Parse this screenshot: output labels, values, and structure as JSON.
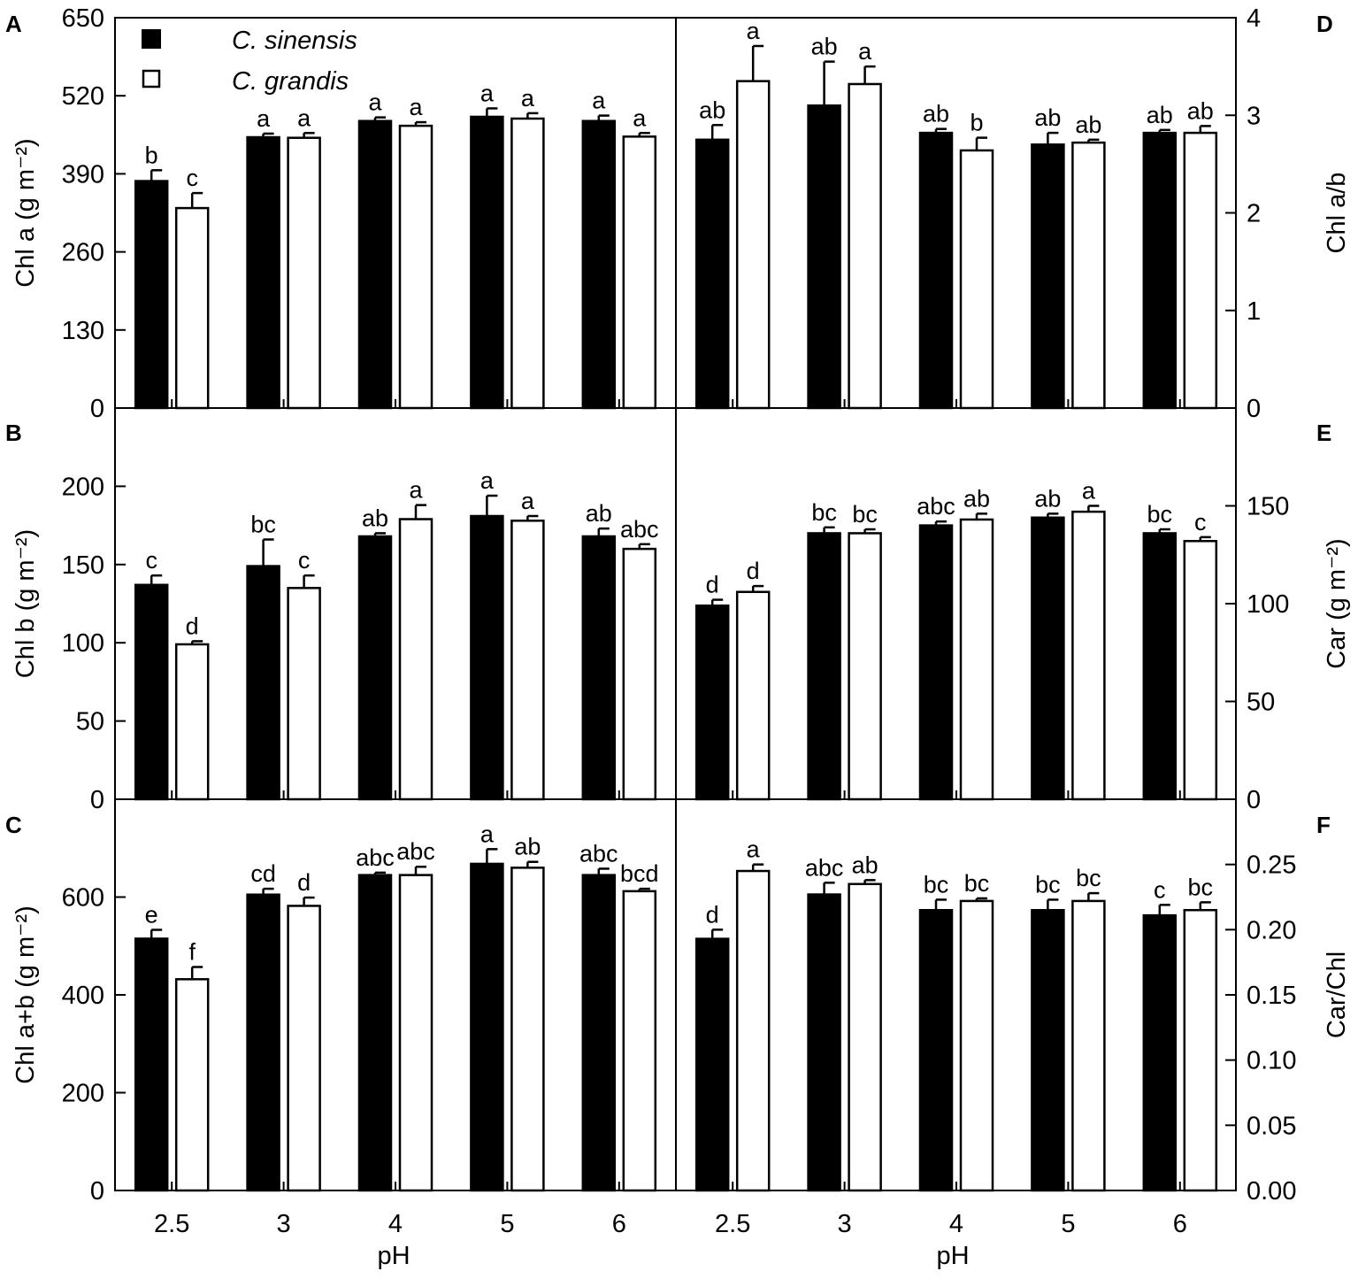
{
  "legend": [
    {
      "name": "C. sinensis",
      "color": "#000000"
    },
    {
      "name": "C. grandis",
      "color": "#ffffff"
    }
  ],
  "x_label": "pH",
  "chart_data": [
    {
      "panel": "A",
      "type": "bar",
      "side": "left",
      "ylabel": "Chl a (g m⁻²)",
      "ylim": [
        0,
        650
      ],
      "yticks": [
        0,
        130,
        260,
        390,
        520,
        650
      ],
      "ytick_labels": [
        "0",
        "130",
        "260",
        "390",
        "520",
        "650"
      ],
      "categories": [
        "2.5",
        "3",
        "4",
        "5",
        "6"
      ],
      "series": [
        {
          "name": "C. sinensis",
          "values": [
            378,
            451,
            478,
            485,
            478
          ],
          "errors": [
            18,
            6,
            6,
            14,
            9
          ],
          "labels": [
            "b",
            "a",
            "a",
            "a",
            "a"
          ]
        },
        {
          "name": "C. grandis",
          "values": [
            333,
            450,
            470,
            482,
            452
          ],
          "errors": [
            25,
            8,
            6,
            9,
            6
          ],
          "labels": [
            "c",
            "a",
            "a",
            "a",
            "a"
          ]
        }
      ]
    },
    {
      "panel": "B",
      "type": "bar",
      "side": "left",
      "ylabel": "Chl b (g m⁻²)",
      "ylim": [
        0,
        250
      ],
      "yticks": [
        0,
        50,
        100,
        150,
        200
      ],
      "ytick_labels": [
        "0",
        "50",
        "100",
        "150",
        "200"
      ],
      "categories": [
        "2.5",
        "3",
        "4",
        "5",
        "6"
      ],
      "series": [
        {
          "name": "C. sinensis",
          "values": [
            137,
            149,
            168,
            181,
            168
          ],
          "errors": [
            6,
            17,
            2,
            13,
            5
          ],
          "labels": [
            "c",
            "bc",
            "ab",
            "a",
            "ab"
          ]
        },
        {
          "name": "C. grandis",
          "values": [
            99,
            135,
            179,
            178,
            160
          ],
          "errors": [
            2,
            8,
            9,
            3,
            3
          ],
          "labels": [
            "d",
            "c",
            "a",
            "a",
            "abc"
          ]
        }
      ]
    },
    {
      "panel": "C",
      "type": "bar",
      "side": "left",
      "ylabel": "Chl a+b (g m⁻²)",
      "ylim": [
        0,
        800
      ],
      "yticks": [
        0,
        200,
        400,
        600
      ],
      "ytick_labels": [
        "0",
        "200",
        "400",
        "600"
      ],
      "categories": [
        "2.5",
        "3",
        "4",
        "5",
        "6"
      ],
      "series": [
        {
          "name": "C. sinensis",
          "values": [
            515,
            605,
            645,
            668,
            645
          ],
          "errors": [
            18,
            12,
            5,
            30,
            13
          ],
          "labels": [
            "e",
            "cd",
            "abc",
            "a",
            "abc"
          ]
        },
        {
          "name": "C. grandis",
          "values": [
            432,
            582,
            645,
            660,
            612
          ],
          "errors": [
            25,
            17,
            17,
            12,
            5
          ],
          "labels": [
            "f",
            "d",
            "abc",
            "ab",
            "bcd"
          ]
        }
      ]
    },
    {
      "panel": "D",
      "type": "bar",
      "side": "right",
      "ylabel": "Chl a/b",
      "ylim": [
        0,
        4
      ],
      "yticks": [
        0,
        1,
        2,
        3,
        4
      ],
      "ytick_labels": [
        "0",
        "1",
        "2",
        "3",
        "4"
      ],
      "categories": [
        "2.5",
        "3",
        "4",
        "5",
        "6"
      ],
      "series": [
        {
          "name": "C. sinensis",
          "values": [
            2.75,
            3.1,
            2.82,
            2.7,
            2.82
          ],
          "errors": [
            0.15,
            0.45,
            0.04,
            0.12,
            0.03
          ],
          "labels": [
            "ab",
            "ab",
            "ab",
            "ab",
            "ab"
          ]
        },
        {
          "name": "C. grandis",
          "values": [
            3.35,
            3.32,
            2.64,
            2.72,
            2.82
          ],
          "errors": [
            0.36,
            0.18,
            0.13,
            0.03,
            0.07
          ],
          "labels": [
            "a",
            "a",
            "b",
            "ab",
            "ab"
          ]
        }
      ]
    },
    {
      "panel": "E",
      "type": "bar",
      "side": "right",
      "ylabel": "Car (g m⁻²)",
      "ylim": [
        0,
        200
      ],
      "yticks": [
        0,
        50,
        100,
        150
      ],
      "ytick_labels": [
        "0",
        "50",
        "100",
        "150"
      ],
      "categories": [
        "2.5",
        "3",
        "4",
        "5",
        "6"
      ],
      "series": [
        {
          "name": "C. sinensis",
          "values": [
            99,
            136,
            140,
            144,
            136
          ],
          "errors": [
            3,
            3,
            2,
            2,
            2
          ],
          "labels": [
            "d",
            "bc",
            "abc",
            "ab",
            "bc"
          ]
        },
        {
          "name": "C. grandis",
          "values": [
            106,
            136,
            143,
            147,
            132
          ],
          "errors": [
            3,
            2,
            3,
            3,
            2
          ],
          "labels": [
            "d",
            "bc",
            "ab",
            "a",
            "c"
          ]
        }
      ]
    },
    {
      "panel": "F",
      "type": "bar",
      "side": "right",
      "ylabel": "Car/Chl",
      "ylim": [
        0,
        0.3
      ],
      "yticks": [
        0,
        0.05,
        0.1,
        0.15,
        0.2,
        0.25
      ],
      "ytick_labels": [
        "0.00",
        "0.05",
        "0.10",
        "0.15",
        "0.20",
        "0.25"
      ],
      "categories": [
        "2.5",
        "3",
        "4",
        "5",
        "6"
      ],
      "series": [
        {
          "name": "C. sinensis",
          "values": [
            0.193,
            0.227,
            0.215,
            0.215,
            0.211
          ],
          "errors": [
            0.007,
            0.009,
            0.008,
            0.008,
            0.008
          ],
          "labels": [
            "d",
            "abc",
            "bc",
            "bc",
            "c"
          ]
        },
        {
          "name": "C. grandis",
          "values": [
            0.245,
            0.235,
            0.222,
            0.222,
            0.215
          ],
          "errors": [
            0.005,
            0.003,
            0.002,
            0.006,
            0.006
          ],
          "labels": [
            "a",
            "ab",
            "bc",
            "bc",
            "bc"
          ]
        }
      ]
    }
  ]
}
